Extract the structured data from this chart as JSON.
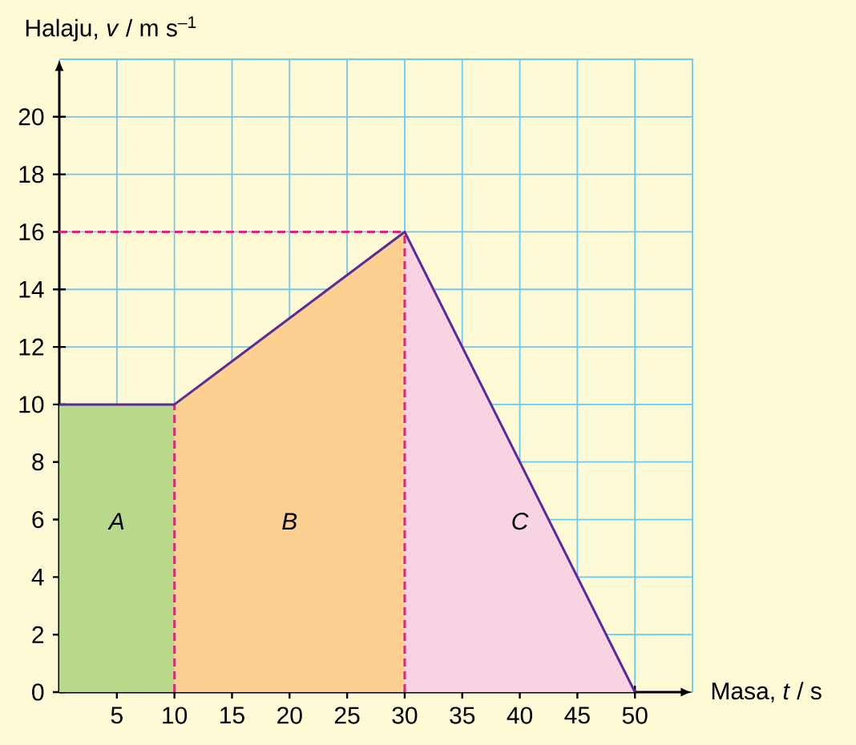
{
  "chart_data": {
    "type": "line",
    "xlabel": "Masa, *t* / s",
    "ylabel": "Halaju, *v* / m s$^{–1}$",
    "xlim": [
      0,
      55
    ],
    "ylim": [
      0,
      22
    ],
    "xticks": [
      5,
      10,
      15,
      20,
      25,
      30,
      35,
      40,
      45,
      50
    ],
    "yticks": [
      0,
      2,
      4,
      6,
      8,
      10,
      12,
      14,
      16,
      18,
      20
    ],
    "grid": true,
    "marker": "none",
    "series": [
      {
        "type": "area",
        "color": "#b8d98c",
        "x": [
          0,
          10
        ],
        "values": [
          10,
          10
        ]
      },
      {
        "type": "area",
        "color": "#fbd091",
        "x": [
          10,
          30
        ],
        "values": [
          10,
          16
        ]
      },
      {
        "type": "area",
        "color": "#f8d3e4",
        "x": [
          30,
          50
        ],
        "values": [
          16,
          0
        ]
      },
      {
        "color": "#e8207a",
        "line_style": "dashed",
        "x": [
          0,
          30
        ],
        "values": [
          16,
          16
        ]
      },
      {
        "color": "#e8207a",
        "line_style": "dashed",
        "x": [
          30,
          30
        ],
        "values": [
          0,
          16
        ]
      },
      {
        "color": "#e8207a",
        "line_style": "dashed",
        "x": [
          10,
          10
        ],
        "values": [
          0,
          10
        ]
      },
      {
        "color": "#5b2a96",
        "line_style": "solid",
        "x": [
          0,
          10,
          30,
          50
        ],
        "values": [
          10,
          10,
          16,
          0
        ]
      }
    ],
    "annotations": [
      "A",
      "B",
      "C"
    ]
  }
}
